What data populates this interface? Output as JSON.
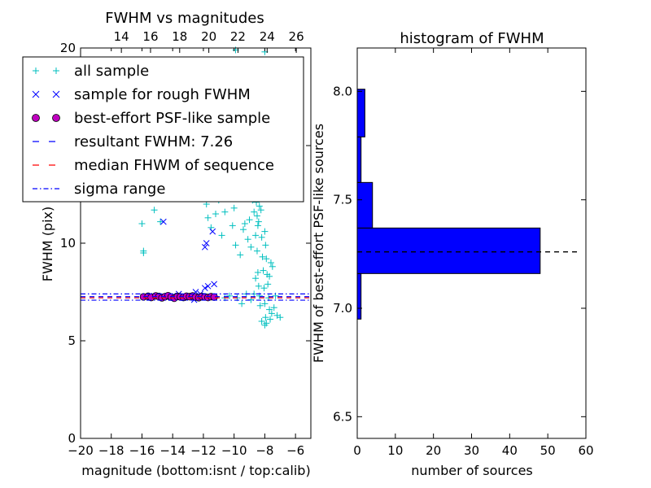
{
  "chart_data": [
    {
      "type": "scatter",
      "title": "FWHM vs magnitudes",
      "xlabel": "magnitude (bottom:isnt / top:calib)",
      "ylabel": "FWHM (pix)",
      "xlim": [
        -20,
        -5
      ],
      "ylim": [
        0,
        20
      ],
      "x_ticks": [
        "−20",
        "−18",
        "−16",
        "−14",
        "−12",
        "−10",
        "−8",
        "−6"
      ],
      "x_tick_values": [
        -20,
        -18,
        -16,
        -14,
        -12,
        -10,
        -8,
        -6
      ],
      "y_ticks": [
        "0",
        "5",
        "10",
        "15",
        "20"
      ],
      "y_tick_values": [
        0,
        5,
        10,
        15,
        20
      ],
      "top_axis": {
        "ticks": [
          "14",
          "16",
          "18",
          "20",
          "22",
          "24",
          "26"
        ],
        "tick_values": [
          14,
          16,
          18,
          20,
          22,
          24,
          26
        ],
        "xlim": [
          11.2,
          27.0
        ]
      },
      "legend": {
        "placement": "upper-left",
        "entries": [
          {
            "label": "all sample",
            "marker": "plus",
            "color": "#00bfbf"
          },
          {
            "label": "sample for rough FWHM",
            "marker": "x",
            "color": "#0000ff"
          },
          {
            "label": "best-effort PSF-like sample",
            "marker": "circle",
            "color": "#bf00bf"
          },
          {
            "label": "resultant FWHM: 7.26",
            "marker": "dashed-line",
            "color": "#0000ff"
          },
          {
            "label": "median FHWM of sequence",
            "marker": "dashed-line",
            "color": "#ff0000"
          },
          {
            "label": "sigma range",
            "marker": "dashdot-line",
            "color": "#0000ff"
          }
        ]
      },
      "series": [
        {
          "name": "all sample",
          "color": "#00bfbf",
          "points": [
            [
              -16.0,
              11.0
            ],
            [
              -15.9,
              9.6
            ],
            [
              -15.9,
              9.5
            ],
            [
              -15.2,
              11.7
            ],
            [
              -14.8,
              11.1
            ],
            [
              -12.4,
              15.0
            ],
            [
              -11.8,
              12.0
            ],
            [
              -11.7,
              11.3
            ],
            [
              -11.5,
              10.8
            ],
            [
              -11.2,
              11.5
            ],
            [
              -11.0,
              12.2
            ],
            [
              -10.8,
              10.4
            ],
            [
              -10.6,
              11.6
            ],
            [
              -10.4,
              12.5
            ],
            [
              -10.2,
              12.3
            ],
            [
              -10.0,
              11.8
            ],
            [
              -9.7,
              12.9
            ],
            [
              -9.5,
              12.6
            ],
            [
              -9.6,
              9.4
            ],
            [
              -9.3,
              11.0
            ],
            [
              -9.1,
              10.2
            ],
            [
              -8.9,
              9.8
            ],
            [
              -8.8,
              12.2
            ],
            [
              -8.7,
              11.6
            ],
            [
              -8.6,
              10.4
            ],
            [
              -8.5,
              9.6
            ],
            [
              -8.45,
              8.5
            ],
            [
              -8.4,
              7.8
            ],
            [
              -8.35,
              7.3
            ],
            [
              -8.3,
              6.8
            ],
            [
              -8.6,
              8.2
            ],
            [
              -8.7,
              7.4
            ],
            [
              -8.25,
              11.7
            ],
            [
              -8.2,
              10.3
            ],
            [
              -8.15,
              9.3
            ],
            [
              -8.1,
              8.6
            ],
            [
              -8.05,
              7.7
            ],
            [
              -8.0,
              6.9
            ],
            [
              -7.95,
              6.2
            ],
            [
              -7.9,
              5.9
            ],
            [
              -8.2,
              12.9
            ],
            [
              -8.25,
              13.3
            ],
            [
              -8.3,
              12.6
            ],
            [
              -8.35,
              11.9
            ],
            [
              -8.4,
              11.1
            ],
            [
              -8.45,
              10.9
            ],
            [
              -8.5,
              11.4
            ],
            [
              -8.55,
              12.1
            ],
            [
              -8.1,
              12.4
            ],
            [
              -8.0,
              10.6
            ],
            [
              -7.95,
              9.9
            ],
            [
              -7.9,
              9.2
            ],
            [
              -7.85,
              8.4
            ],
            [
              -7.8,
              7.9
            ],
            [
              -7.75,
              7.2
            ],
            [
              -7.7,
              6.6
            ],
            [
              -7.65,
              6.1
            ],
            [
              -7.55,
              6.4
            ],
            [
              -7.4,
              6.7
            ],
            [
              -7.2,
              6.3
            ],
            [
              -7.6,
              9.0
            ],
            [
              -7.7,
              8.3
            ],
            [
              -7.5,
              8.8
            ],
            [
              -8.0,
              5.8
            ],
            [
              -8.2,
              6.0
            ],
            [
              -9.8,
              7.2
            ],
            [
              -9.2,
              7.4
            ],
            [
              -8.9,
              7.1
            ],
            [
              -9.5,
              6.9
            ],
            [
              -10.3,
              7.3
            ],
            [
              -10.6,
              7.2
            ],
            [
              -7.3,
              7.3
            ],
            [
              -7.0,
              6.2
            ],
            [
              -8.6,
              13.1
            ],
            [
              -8.7,
              12.8
            ],
            [
              -8.8,
              13.5
            ],
            [
              -9.0,
              11.2
            ],
            [
              -9.4,
              10.7
            ],
            [
              -9.9,
              9.9
            ],
            [
              -10.1,
              10.9
            ],
            [
              -8.0,
              19.8
            ],
            [
              -9.9,
              19.9
            ]
          ]
        },
        {
          "name": "sample for rough FWHM",
          "color": "#0000ff",
          "points": [
            [
              -14.6,
              11.1
            ],
            [
              -11.9,
              9.8
            ],
            [
              -11.8,
              10.0
            ],
            [
              -11.4,
              10.6
            ],
            [
              -11.7,
              7.8
            ],
            [
              -11.9,
              7.7
            ],
            [
              -12.2,
              7.4
            ],
            [
              -12.6,
              7.1
            ],
            [
              -12.9,
              7.3
            ],
            [
              -13.3,
              7.2
            ],
            [
              -13.6,
              7.4
            ],
            [
              -14.0,
              7.3
            ],
            [
              -14.4,
              7.2
            ],
            [
              -15.2,
              7.3
            ],
            [
              -12.5,
              7.5
            ],
            [
              -11.3,
              7.9
            ]
          ]
        },
        {
          "name": "best-effort PSF-like sample",
          "color": "#bf00bf",
          "points": [
            [
              -15.9,
              7.25
            ],
            [
              -15.6,
              7.28
            ],
            [
              -15.4,
              7.22
            ],
            [
              -15.1,
              7.3
            ],
            [
              -14.9,
              7.27
            ],
            [
              -14.7,
              7.2
            ],
            [
              -14.5,
              7.26
            ],
            [
              -14.3,
              7.31
            ],
            [
              -14.1,
              7.24
            ],
            [
              -13.9,
              7.18
            ],
            [
              -13.7,
              7.27
            ],
            [
              -13.5,
              7.25
            ],
            [
              -13.3,
              7.22
            ],
            [
              -13.1,
              7.28
            ],
            [
              -12.9,
              7.26
            ],
            [
              -12.7,
              7.3
            ],
            [
              -12.5,
              7.24
            ],
            [
              -12.3,
              7.21
            ],
            [
              -12.1,
              7.27
            ],
            [
              -11.9,
              7.25
            ],
            [
              -11.7,
              7.22
            ],
            [
              -11.5,
              7.26
            ],
            [
              -11.3,
              7.24
            ]
          ]
        }
      ],
      "hlines": [
        {
          "name": "resultant FWHM: 7.26",
          "value": 7.26,
          "style": "dashed",
          "color": "#0000ff"
        },
        {
          "name": "median FHWM of sequence",
          "value": 7.2,
          "style": "dashed",
          "color": "#ff0000"
        },
        {
          "name": "sigma range upper",
          "value": 7.4,
          "style": "dashdot",
          "color": "#0000ff"
        },
        {
          "name": "sigma range lower",
          "value": 7.08,
          "style": "dashdot",
          "color": "#0000ff"
        }
      ],
      "grid": false
    },
    {
      "type": "bar",
      "orientation": "horizontal",
      "title": "histogram of FWHM",
      "xlabel": "number of sources",
      "ylabel": "FWHM of best-effort PSF-like sources",
      "xlim": [
        0,
        60
      ],
      "ylim": [
        6.4,
        8.2
      ],
      "x_ticks": [
        "0",
        "10",
        "20",
        "30",
        "40",
        "50",
        "60"
      ],
      "x_tick_values": [
        0,
        10,
        20,
        30,
        40,
        50,
        60
      ],
      "y_ticks": [
        "6.5",
        "7.0",
        "7.5",
        "8.0"
      ],
      "y_tick_values": [
        6.5,
        7.0,
        7.5,
        8.0
      ],
      "bar_color": "#0000ff",
      "bins": [
        {
          "low": 6.95,
          "high": 7.16,
          "count": 1
        },
        {
          "low": 7.16,
          "high": 7.37,
          "count": 48
        },
        {
          "low": 7.37,
          "high": 7.58,
          "count": 4
        },
        {
          "low": 7.58,
          "high": 7.79,
          "count": 1
        },
        {
          "low": 7.79,
          "high": 8.01,
          "count": 2
        }
      ],
      "hline": {
        "value": 7.26,
        "xmax": 58,
        "style": "dashed",
        "color": "#000000"
      },
      "grid": false
    }
  ]
}
